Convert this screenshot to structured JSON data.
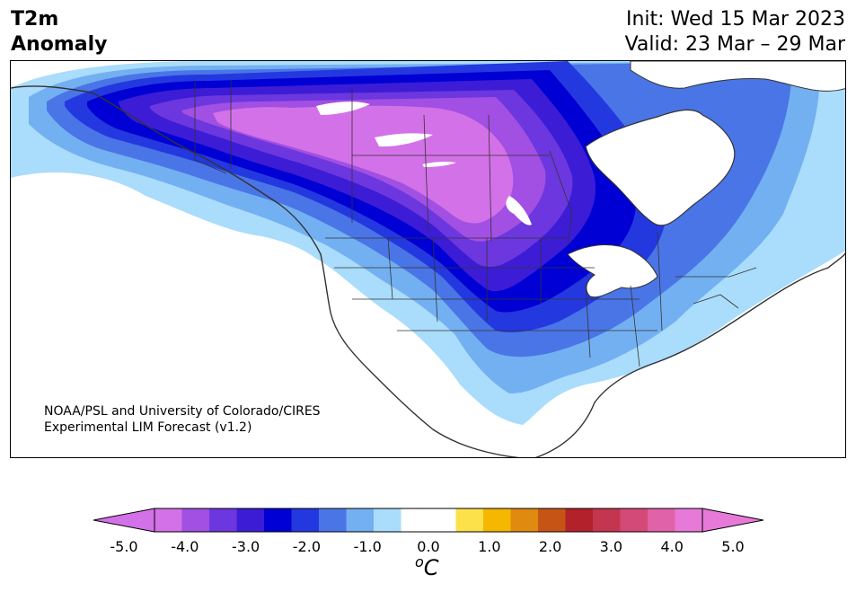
{
  "title": {
    "line1": "T2m",
    "line2": "Anomaly"
  },
  "header": {
    "init": "Init: Wed 15 Mar 2023",
    "valid": "Valid: 23 Mar – 29 Mar"
  },
  "credit": {
    "line1": "NOAA/PSL and University of Colorado/CIRES",
    "line2": "Experimental LIM Forecast (v1.2)"
  },
  "colorbar": {
    "unit_sup": "o",
    "unit_main": "C",
    "ticks": [
      "-5.0",
      "-4.0",
      "-3.0",
      "-2.0",
      "-1.0",
      "0.0",
      "1.0",
      "2.0",
      "3.0",
      "4.0",
      "5.0"
    ],
    "colors": [
      "#d371e8",
      "#a24fe3",
      "#6c37de",
      "#3d1cd6",
      "#0000d4",
      "#2438e0",
      "#4a75e6",
      "#73b0f2",
      "#aadcfb",
      "#ffffff",
      "#ffffff",
      "#fde14a",
      "#f5b700",
      "#e08a10",
      "#c65515",
      "#b3212a",
      "#c43550",
      "#d34a78",
      "#e062a8",
      "#e77ad8"
    ],
    "under_color": "#d371e8",
    "over_color": "#e77ad8"
  },
  "map_colors": {
    "c_neg5": "#d371e8",
    "c_neg45": "#a24fe3",
    "c_neg4": "#6c37de",
    "c_neg35": "#3d1cd6",
    "c_neg3": "#0000d4",
    "c_neg25": "#2438e0",
    "c_neg2": "#4a75e6",
    "c_neg15": "#73b0f2",
    "c_neg1": "#aadcfb",
    "border": "#333333"
  }
}
